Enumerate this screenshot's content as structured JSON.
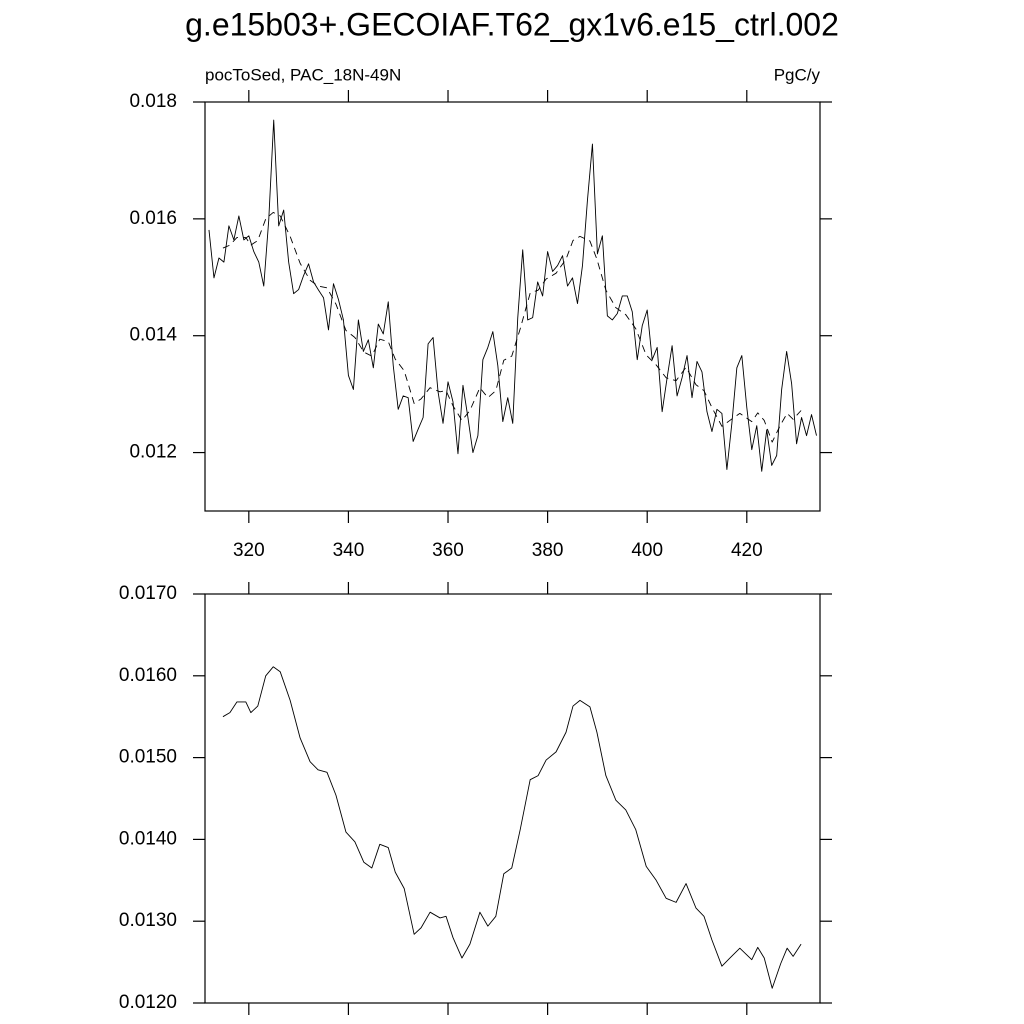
{
  "title": "g.e15b03+.GECOIAF.T62_gx1v6.e15_ctrl.002",
  "chart_data": [
    {
      "type": "line",
      "subtitle_left": "pocToSed, PAC_18N-49N",
      "subtitle_right": "PgC/y",
      "xlim": [
        311.2,
        434.7
      ],
      "xticks": [
        320,
        340,
        360,
        380,
        400,
        420
      ],
      "xtick_labels": true,
      "ylim": [
        0.011,
        0.018
      ],
      "yticks": [
        0.012,
        0.014,
        0.016,
        0.018
      ],
      "series": [
        {
          "color": "#000000",
          "dash": false,
          "x": [
            312,
            313,
            314,
            315,
            316,
            317,
            318,
            319,
            320,
            321,
            322,
            323,
            324,
            325,
            326,
            327,
            328,
            329,
            330,
            331,
            332,
            333,
            334,
            335,
            336,
            337,
            338,
            339,
            340,
            341,
            342,
            343,
            344,
            345,
            346,
            347,
            348,
            349,
            350,
            351,
            352,
            353,
            354,
            355,
            356,
            357,
            358,
            359,
            360,
            361,
            362,
            363,
            364,
            365,
            366,
            367,
            368,
            369,
            370,
            371,
            372,
            373,
            374,
            375,
            376,
            377,
            378,
            379,
            380,
            381,
            382,
            383,
            384,
            385,
            386,
            387,
            388,
            389,
            390,
            391,
            392,
            393,
            394,
            395,
            396,
            397,
            398,
            399,
            400,
            401,
            402,
            403,
            404,
            405,
            406,
            407,
            408,
            409,
            410,
            411,
            412,
            413,
            414,
            415,
            416,
            417,
            418,
            419,
            420,
            421,
            422,
            423,
            424,
            425,
            426,
            427,
            428,
            429,
            430,
            431,
            432,
            433,
            434
          ],
          "values": [
            0.01581,
            0.01499,
            0.01533,
            0.01526,
            0.01588,
            0.01564,
            0.01605,
            0.01564,
            0.01571,
            0.01544,
            0.01526,
            0.01485,
            0.01598,
            0.01769,
            0.01588,
            0.01615,
            0.01526,
            0.01472,
            0.01479,
            0.01503,
            0.01523,
            0.01492,
            0.01478,
            0.01465,
            0.0141,
            0.01489,
            0.01462,
            0.01427,
            0.01332,
            0.01308,
            0.01427,
            0.01373,
            0.01393,
            0.01345,
            0.0142,
            0.01403,
            0.01458,
            0.01349,
            0.01274,
            0.01297,
            0.01294,
            0.01219,
            0.0124,
            0.0126,
            0.01386,
            0.01397,
            0.01304,
            0.0125,
            0.01321,
            0.01287,
            0.01198,
            0.01315,
            0.0126,
            0.012,
            0.01229,
            0.01359,
            0.0138,
            0.01407,
            0.01349,
            0.01253,
            0.01294,
            0.0125,
            0.0143,
            0.01547,
            0.01427,
            0.01431,
            0.01492,
            0.01468,
            0.01544,
            0.0151,
            0.0152,
            0.01537,
            0.01485,
            0.01499,
            0.01455,
            0.0152,
            0.01632,
            0.01728,
            0.0154,
            0.01571,
            0.01434,
            0.01427,
            0.01438,
            0.01468,
            0.01468,
            0.01441,
            0.01359,
            0.01417,
            0.01444,
            0.01359,
            0.0138,
            0.0127,
            0.01328,
            0.01383,
            0.01297,
            0.01328,
            0.01366,
            0.01294,
            0.01356,
            0.01338,
            0.0127,
            0.01236,
            0.01274,
            0.01267,
            0.01171,
            0.0125,
            0.01345,
            0.01366,
            0.01277,
            0.01205,
            0.01246,
            0.01168,
            0.01239,
            0.01178,
            0.01195,
            0.01308,
            0.01373,
            0.01318,
            0.01215,
            0.0126,
            0.01229,
            0.01265,
            0.01229
          ]
        },
        {
          "color": "#000000",
          "dash": true,
          "x": [
            314.8,
            316.2,
            317.6,
            319.4,
            320.4,
            321.8,
            323.4,
            324.9,
            326.3,
            328.3,
            330.3,
            332.3,
            333.9,
            335.7,
            337.5,
            339.5,
            341.3,
            343.1,
            344.7,
            346.3,
            348.0,
            349.4,
            351.2,
            353.2,
            354.6,
            356.4,
            358.4,
            359.6,
            361.0,
            362.8,
            364.4,
            366.4,
            368.0,
            369.6,
            371.2,
            372.8,
            374.5,
            376.5,
            378.1,
            379.7,
            381.7,
            383.7,
            385.1,
            386.5,
            388.5,
            389.9,
            391.7,
            393.7,
            395.7,
            397.7,
            399.8,
            401.8,
            403.8,
            405.8,
            407.8,
            409.8,
            411.4,
            413.0,
            415.0,
            416.6,
            418.6,
            419.8,
            421.0,
            422.2,
            423.5,
            425.1,
            426.8,
            428.1,
            429.3,
            430.9
          ],
          "values": [
            0.0155,
            0.01555,
            0.01568,
            0.01568,
            0.01555,
            0.01563,
            0.016,
            0.01611,
            0.01605,
            0.0157,
            0.01524,
            0.01495,
            0.01485,
            0.01482,
            0.01454,
            0.01409,
            0.01397,
            0.01372,
            0.01365,
            0.01394,
            0.0139,
            0.0136,
            0.0134,
            0.01284,
            0.01292,
            0.01311,
            0.01304,
            0.01306,
            0.0128,
            0.01255,
            0.01272,
            0.01311,
            0.01294,
            0.01306,
            0.01358,
            0.01365,
            0.01412,
            0.01473,
            0.01478,
            0.01497,
            0.01507,
            0.01531,
            0.01563,
            0.0157,
            0.01562,
            0.01531,
            0.01478,
            0.01448,
            0.01436,
            0.01412,
            0.01367,
            0.0135,
            0.01328,
            0.01323,
            0.01346,
            0.01316,
            0.01306,
            0.01277,
            0.01245,
            0.01255,
            0.01267,
            0.0126,
            0.01253,
            0.01268,
            0.01255,
            0.01218,
            0.01248,
            0.01267,
            0.01257,
            0.01272
          ]
        }
      ]
    },
    {
      "type": "line",
      "xlim": [
        311.2,
        434.7
      ],
      "xticks": [
        320,
        340,
        360,
        380,
        400,
        420
      ],
      "xtick_labels": false,
      "ylim": [
        0.012,
        0.017
      ],
      "yticks": [
        {
          "value": 0.012,
          "label": "0.0120"
        },
        {
          "value": 0.013,
          "label": "0.0130"
        },
        {
          "value": 0.014,
          "label": "0.0140"
        },
        {
          "value": 0.015,
          "label": "0.0150"
        },
        {
          "value": 0.016,
          "label": "0.0160"
        },
        {
          "value": 0.017,
          "label": "0.0170"
        }
      ],
      "series": [
        {
          "color": "#000000",
          "dash": false,
          "x": [
            314.8,
            316.2,
            317.6,
            319.4,
            320.4,
            321.8,
            323.4,
            324.9,
            326.3,
            328.3,
            330.3,
            332.3,
            333.9,
            335.7,
            337.5,
            339.5,
            341.3,
            343.1,
            344.7,
            346.3,
            348.0,
            349.4,
            351.2,
            353.2,
            354.6,
            356.4,
            358.4,
            359.6,
            361.0,
            362.8,
            364.4,
            366.4,
            368.0,
            369.6,
            371.2,
            372.8,
            374.5,
            376.5,
            378.1,
            379.7,
            381.7,
            383.7,
            385.1,
            386.5,
            388.5,
            389.9,
            391.7,
            393.7,
            395.7,
            397.7,
            399.8,
            401.8,
            403.8,
            405.8,
            407.8,
            409.8,
            411.4,
            413.0,
            415.0,
            416.6,
            418.6,
            419.8,
            421.0,
            422.2,
            423.5,
            425.1,
            426.8,
            428.1,
            429.3,
            430.9
          ],
          "values": [
            0.0155,
            0.01555,
            0.01568,
            0.01568,
            0.01555,
            0.01563,
            0.016,
            0.01611,
            0.01605,
            0.0157,
            0.01524,
            0.01495,
            0.01485,
            0.01482,
            0.01454,
            0.01409,
            0.01397,
            0.01372,
            0.01365,
            0.01394,
            0.0139,
            0.0136,
            0.0134,
            0.01284,
            0.01292,
            0.01311,
            0.01304,
            0.01306,
            0.0128,
            0.01255,
            0.01272,
            0.01311,
            0.01294,
            0.01306,
            0.01358,
            0.01365,
            0.01412,
            0.01473,
            0.01478,
            0.01497,
            0.01507,
            0.01531,
            0.01563,
            0.0157,
            0.01562,
            0.01531,
            0.01478,
            0.01448,
            0.01436,
            0.01412,
            0.01367,
            0.0135,
            0.01328,
            0.01323,
            0.01346,
            0.01316,
            0.01306,
            0.01277,
            0.01245,
            0.01255,
            0.01267,
            0.0126,
            0.01253,
            0.01268,
            0.01255,
            0.01218,
            0.01248,
            0.01267,
            0.01257,
            0.01272
          ]
        }
      ]
    }
  ]
}
